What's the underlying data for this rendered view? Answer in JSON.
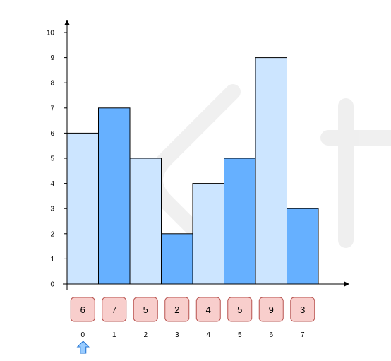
{
  "chart_data": {
    "type": "bar",
    "categories": [
      "0",
      "1",
      "2",
      "3",
      "4",
      "5",
      "6",
      "7"
    ],
    "values": [
      6,
      7,
      5,
      2,
      4,
      5,
      9,
      3
    ],
    "y_ticks": [
      "0",
      "1",
      "2",
      "3",
      "4",
      "5",
      "6",
      "7",
      "8",
      "9",
      "10"
    ],
    "ylim": [
      0,
      10
    ],
    "array_cells": [
      "6",
      "7",
      "5",
      "2",
      "4",
      "5",
      "9",
      "3"
    ],
    "pointer_index": 0,
    "grid": false,
    "legend": "none"
  },
  "colors": {
    "bar_light": "#cce5ff",
    "bar_dark": "#66b0ff",
    "bar_stroke": "#000000",
    "cell_fill": "#f8cecc",
    "cell_stroke": "#b85450",
    "arrow_fill": "#99ccff",
    "arrow_stroke": "#1b6fd0",
    "axis": "#000000",
    "text": "#000000"
  },
  "icons": {
    "pointer": "up-arrow-icon",
    "watermark": "leetcode-watermark"
  }
}
